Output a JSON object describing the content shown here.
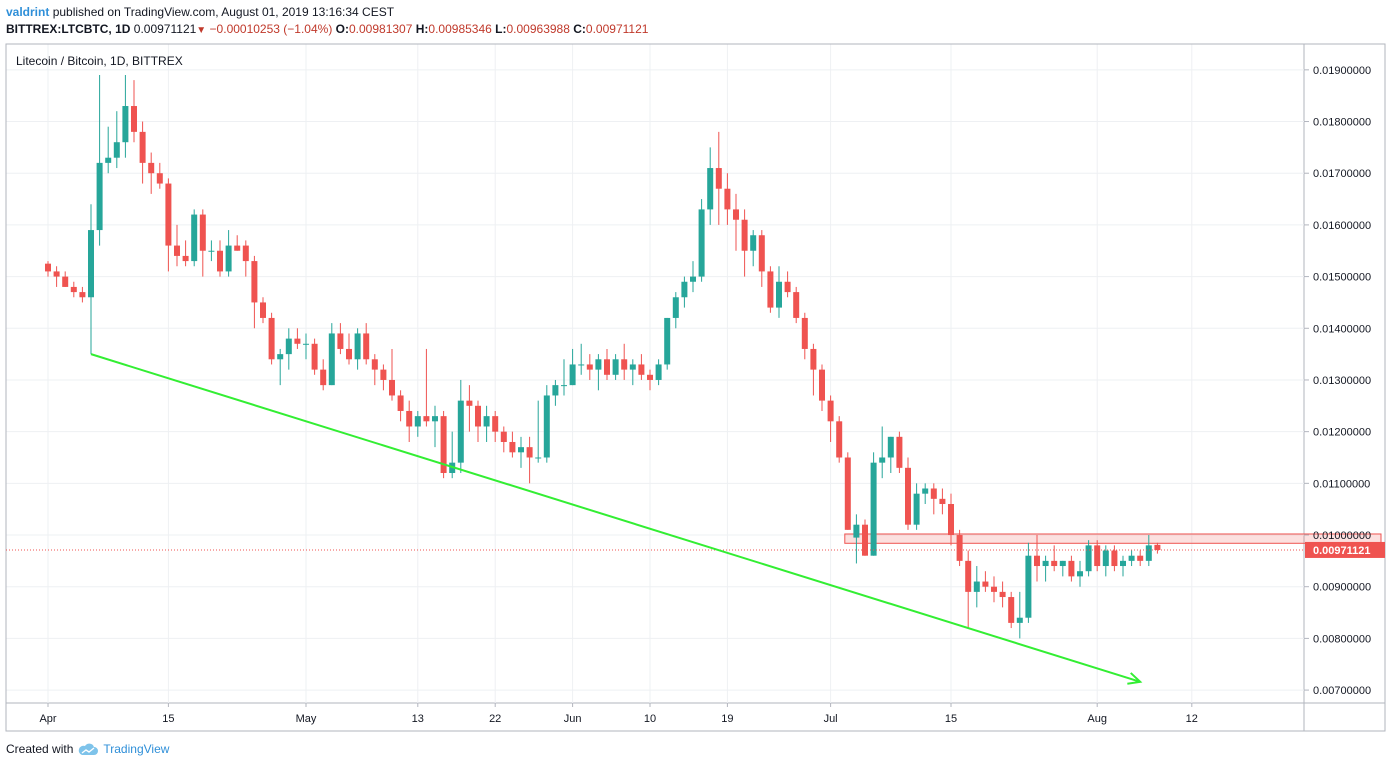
{
  "header": {
    "user": "valdrint",
    "published_text": "published on TradingView.com, August 01, 2019 13:16:34 CEST",
    "symbol": "BITTREX:LTCBTC, 1D",
    "last": "0.00971121",
    "change": "−0.00010253 (−1.04%)",
    "open_label": "O:",
    "open": "0.00981307",
    "high_label": "H:",
    "high": "0.00985346",
    "low_label": "L:",
    "low": "0.00963988",
    "close_label": "C:",
    "close": "0.00971121"
  },
  "footer": {
    "created_with": "Created with",
    "brand": "TradingView",
    "logo_icon": "tradingview-cloud-icon"
  },
  "chart_data": {
    "type": "candlestick",
    "title": "Litecoin / Bitcoin, 1D, BITTREX",
    "ylim": [
      0.00675,
      0.0195
    ],
    "y_ticks": [
      "0.00700000",
      "0.00800000",
      "0.00900000",
      "0.01000000",
      "0.01100000",
      "0.01200000",
      "0.01300000",
      "0.01400000",
      "0.01500000",
      "0.01600000",
      "0.01700000",
      "0.01800000",
      "0.01900000"
    ],
    "x_ticks": [
      "Apr",
      "15",
      "May",
      "13",
      "22",
      "Jun",
      "10",
      "19",
      "Jul",
      "15",
      "Aug",
      "12"
    ],
    "x_tick_index": [
      0,
      14,
      30,
      43,
      52,
      61,
      70,
      79,
      91,
      105,
      122,
      133
    ],
    "grid": true,
    "last_price": 0.00971121,
    "last_price_label": "0.00971121",
    "colors": {
      "up": "#26a69a",
      "down": "#ef5350",
      "trendline": "#33ee33",
      "price_line": "#ef5350"
    },
    "candles": [
      {
        "o": 0.01525,
        "h": 0.0153,
        "l": 0.015,
        "c": 0.0151
      },
      {
        "o": 0.0151,
        "h": 0.0152,
        "l": 0.0148,
        "c": 0.015
      },
      {
        "o": 0.015,
        "h": 0.0151,
        "l": 0.0148,
        "c": 0.0148
      },
      {
        "o": 0.0148,
        "h": 0.0149,
        "l": 0.0146,
        "c": 0.0147
      },
      {
        "o": 0.0147,
        "h": 0.0148,
        "l": 0.0145,
        "c": 0.0146
      },
      {
        "o": 0.0146,
        "h": 0.0164,
        "l": 0.0135,
        "c": 0.0159
      },
      {
        "o": 0.0159,
        "h": 0.0189,
        "l": 0.0156,
        "c": 0.0172
      },
      {
        "o": 0.0172,
        "h": 0.0179,
        "l": 0.017,
        "c": 0.0173
      },
      {
        "o": 0.0173,
        "h": 0.0182,
        "l": 0.0171,
        "c": 0.0176
      },
      {
        "o": 0.0176,
        "h": 0.0189,
        "l": 0.0173,
        "c": 0.0183
      },
      {
        "o": 0.0183,
        "h": 0.0188,
        "l": 0.0176,
        "c": 0.0178
      },
      {
        "o": 0.0178,
        "h": 0.018,
        "l": 0.0168,
        "c": 0.0172
      },
      {
        "o": 0.0172,
        "h": 0.0174,
        "l": 0.0166,
        "c": 0.017
      },
      {
        "o": 0.017,
        "h": 0.0172,
        "l": 0.0167,
        "c": 0.0168
      },
      {
        "o": 0.0168,
        "h": 0.0169,
        "l": 0.0151,
        "c": 0.0156
      },
      {
        "o": 0.0156,
        "h": 0.016,
        "l": 0.0152,
        "c": 0.0154
      },
      {
        "o": 0.0154,
        "h": 0.0157,
        "l": 0.0152,
        "c": 0.0153
      },
      {
        "o": 0.0153,
        "h": 0.0163,
        "l": 0.0152,
        "c": 0.0162
      },
      {
        "o": 0.0162,
        "h": 0.0163,
        "l": 0.015,
        "c": 0.0155
      },
      {
        "o": 0.0155,
        "h": 0.0157,
        "l": 0.0153,
        "c": 0.0155
      },
      {
        "o": 0.0155,
        "h": 0.0157,
        "l": 0.015,
        "c": 0.0151
      },
      {
        "o": 0.0151,
        "h": 0.0159,
        "l": 0.015,
        "c": 0.0156
      },
      {
        "o": 0.0156,
        "h": 0.0158,
        "l": 0.0155,
        "c": 0.0155
      },
      {
        "o": 0.0156,
        "h": 0.0157,
        "l": 0.015,
        "c": 0.0153
      },
      {
        "o": 0.0153,
        "h": 0.0154,
        "l": 0.014,
        "c": 0.0145
      },
      {
        "o": 0.0145,
        "h": 0.0146,
        "l": 0.0141,
        "c": 0.0142
      },
      {
        "o": 0.0142,
        "h": 0.0143,
        "l": 0.0133,
        "c": 0.0134
      },
      {
        "o": 0.0134,
        "h": 0.0136,
        "l": 0.0129,
        "c": 0.0135
      },
      {
        "o": 0.0135,
        "h": 0.014,
        "l": 0.0132,
        "c": 0.0138
      },
      {
        "o": 0.0138,
        "h": 0.014,
        "l": 0.0136,
        "c": 0.0137
      },
      {
        "o": 0.0137,
        "h": 0.0139,
        "l": 0.0134,
        "c": 0.0137
      },
      {
        "o": 0.0137,
        "h": 0.0138,
        "l": 0.0131,
        "c": 0.0132
      },
      {
        "o": 0.0132,
        "h": 0.0134,
        "l": 0.0128,
        "c": 0.0129
      },
      {
        "o": 0.0129,
        "h": 0.0141,
        "l": 0.0129,
        "c": 0.0139
      },
      {
        "o": 0.0139,
        "h": 0.0141,
        "l": 0.0135,
        "c": 0.0136
      },
      {
        "o": 0.0136,
        "h": 0.0139,
        "l": 0.0133,
        "c": 0.0134
      },
      {
        "o": 0.0134,
        "h": 0.014,
        "l": 0.0132,
        "c": 0.0139
      },
      {
        "o": 0.0139,
        "h": 0.0141,
        "l": 0.0133,
        "c": 0.0134
      },
      {
        "o": 0.0134,
        "h": 0.0135,
        "l": 0.0129,
        "c": 0.0132
      },
      {
        "o": 0.0132,
        "h": 0.0133,
        "l": 0.0128,
        "c": 0.013
      },
      {
        "o": 0.013,
        "h": 0.0136,
        "l": 0.0126,
        "c": 0.0127
      },
      {
        "o": 0.0127,
        "h": 0.0128,
        "l": 0.0122,
        "c": 0.0124
      },
      {
        "o": 0.0124,
        "h": 0.0126,
        "l": 0.0118,
        "c": 0.0121
      },
      {
        "o": 0.0121,
        "h": 0.0124,
        "l": 0.0119,
        "c": 0.0123
      },
      {
        "o": 0.0123,
        "h": 0.0136,
        "l": 0.0121,
        "c": 0.0122
      },
      {
        "o": 0.0122,
        "h": 0.0125,
        "l": 0.0117,
        "c": 0.0123
      },
      {
        "o": 0.0123,
        "h": 0.0124,
        "l": 0.0111,
        "c": 0.0112
      },
      {
        "o": 0.0112,
        "h": 0.012,
        "l": 0.0111,
        "c": 0.0114
      },
      {
        "o": 0.0114,
        "h": 0.013,
        "l": 0.0112,
        "c": 0.0126
      },
      {
        "o": 0.0126,
        "h": 0.0129,
        "l": 0.012,
        "c": 0.0125
      },
      {
        "o": 0.0125,
        "h": 0.0126,
        "l": 0.0118,
        "c": 0.0121
      },
      {
        "o": 0.0121,
        "h": 0.0125,
        "l": 0.0118,
        "c": 0.0123
      },
      {
        "o": 0.0123,
        "h": 0.0124,
        "l": 0.0118,
        "c": 0.012
      },
      {
        "o": 0.012,
        "h": 0.0121,
        "l": 0.0116,
        "c": 0.0118
      },
      {
        "o": 0.0118,
        "h": 0.012,
        "l": 0.0115,
        "c": 0.0116
      },
      {
        "o": 0.0116,
        "h": 0.0119,
        "l": 0.0113,
        "c": 0.0117
      },
      {
        "o": 0.0117,
        "h": 0.0119,
        "l": 0.011,
        "c": 0.0115
      },
      {
        "o": 0.0115,
        "h": 0.0126,
        "l": 0.0114,
        "c": 0.0115
      },
      {
        "o": 0.0115,
        "h": 0.0129,
        "l": 0.0114,
        "c": 0.0127
      },
      {
        "o": 0.0127,
        "h": 0.013,
        "l": 0.0125,
        "c": 0.0129
      },
      {
        "o": 0.0129,
        "h": 0.0134,
        "l": 0.0127,
        "c": 0.0129
      },
      {
        "o": 0.0129,
        "h": 0.0136,
        "l": 0.0129,
        "c": 0.0133
      },
      {
        "o": 0.0133,
        "h": 0.0137,
        "l": 0.0131,
        "c": 0.0133
      },
      {
        "o": 0.0133,
        "h": 0.0135,
        "l": 0.013,
        "c": 0.0132
      },
      {
        "o": 0.0132,
        "h": 0.0135,
        "l": 0.0128,
        "c": 0.0134
      },
      {
        "o": 0.0134,
        "h": 0.0136,
        "l": 0.013,
        "c": 0.0131
      },
      {
        "o": 0.0131,
        "h": 0.0135,
        "l": 0.013,
        "c": 0.0134
      },
      {
        "o": 0.0134,
        "h": 0.0137,
        "l": 0.013,
        "c": 0.0132
      },
      {
        "o": 0.0132,
        "h": 0.0134,
        "l": 0.0129,
        "c": 0.0133
      },
      {
        "o": 0.0133,
        "h": 0.0135,
        "l": 0.013,
        "c": 0.0131
      },
      {
        "o": 0.0131,
        "h": 0.0132,
        "l": 0.0128,
        "c": 0.013
      },
      {
        "o": 0.013,
        "h": 0.0134,
        "l": 0.0129,
        "c": 0.0133
      },
      {
        "o": 0.0133,
        "h": 0.0142,
        "l": 0.0132,
        "c": 0.0142
      },
      {
        "o": 0.0142,
        "h": 0.0147,
        "l": 0.014,
        "c": 0.0146
      },
      {
        "o": 0.0146,
        "h": 0.015,
        "l": 0.0144,
        "c": 0.0149
      },
      {
        "o": 0.0149,
        "h": 0.0153,
        "l": 0.0147,
        "c": 0.015
      },
      {
        "o": 0.015,
        "h": 0.0165,
        "l": 0.0149,
        "c": 0.0163
      },
      {
        "o": 0.0163,
        "h": 0.0175,
        "l": 0.016,
        "c": 0.0171
      },
      {
        "o": 0.0171,
        "h": 0.0178,
        "l": 0.016,
        "c": 0.0167
      },
      {
        "o": 0.0167,
        "h": 0.017,
        "l": 0.016,
        "c": 0.0163
      },
      {
        "o": 0.0163,
        "h": 0.0166,
        "l": 0.0155,
        "c": 0.0161
      },
      {
        "o": 0.0161,
        "h": 0.0163,
        "l": 0.015,
        "c": 0.0155
      },
      {
        "o": 0.0155,
        "h": 0.0159,
        "l": 0.0152,
        "c": 0.0158
      },
      {
        "o": 0.0158,
        "h": 0.0159,
        "l": 0.0148,
        "c": 0.0151
      },
      {
        "o": 0.0151,
        "h": 0.0152,
        "l": 0.0143,
        "c": 0.0144
      },
      {
        "o": 0.0144,
        "h": 0.0152,
        "l": 0.0142,
        "c": 0.0149
      },
      {
        "o": 0.0149,
        "h": 0.0151,
        "l": 0.0146,
        "c": 0.0147
      },
      {
        "o": 0.0147,
        "h": 0.0148,
        "l": 0.0141,
        "c": 0.0142
      },
      {
        "o": 0.0142,
        "h": 0.0143,
        "l": 0.0134,
        "c": 0.0136
      },
      {
        "o": 0.0136,
        "h": 0.0137,
        "l": 0.0127,
        "c": 0.0132
      },
      {
        "o": 0.0132,
        "h": 0.0133,
        "l": 0.0124,
        "c": 0.0126
      },
      {
        "o": 0.0126,
        "h": 0.0127,
        "l": 0.0118,
        "c": 0.0122
      },
      {
        "o": 0.0122,
        "h": 0.0123,
        "l": 0.0114,
        "c": 0.0115
      },
      {
        "o": 0.0115,
        "h": 0.0116,
        "l": 0.0101,
        "c": 0.0101
      },
      {
        "o": 0.00995,
        "h": 0.0104,
        "l": 0.00945,
        "c": 0.0102
      },
      {
        "o": 0.0102,
        "h": 0.0103,
        "l": 0.0096,
        "c": 0.0096
      },
      {
        "o": 0.0096,
        "h": 0.0116,
        "l": 0.0096,
        "c": 0.0114
      },
      {
        "o": 0.0114,
        "h": 0.0121,
        "l": 0.0111,
        "c": 0.0115
      },
      {
        "o": 0.0115,
        "h": 0.0119,
        "l": 0.0112,
        "c": 0.0119
      },
      {
        "o": 0.0119,
        "h": 0.012,
        "l": 0.0112,
        "c": 0.0113
      },
      {
        "o": 0.0113,
        "h": 0.0115,
        "l": 0.0101,
        "c": 0.0102
      },
      {
        "o": 0.0102,
        "h": 0.011,
        "l": 0.0101,
        "c": 0.0108
      },
      {
        "o": 0.0108,
        "h": 0.011,
        "l": 0.0106,
        "c": 0.0109
      },
      {
        "o": 0.0109,
        "h": 0.011,
        "l": 0.0104,
        "c": 0.0107
      },
      {
        "o": 0.0107,
        "h": 0.0109,
        "l": 0.0104,
        "c": 0.0106
      },
      {
        "o": 0.0106,
        "h": 0.0108,
        "l": 0.0098,
        "c": 0.01
      },
      {
        "o": 0.01,
        "h": 0.0101,
        "l": 0.0094,
        "c": 0.0095
      },
      {
        "o": 0.0095,
        "h": 0.0097,
        "l": 0.0082,
        "c": 0.0089
      },
      {
        "o": 0.0089,
        "h": 0.0094,
        "l": 0.0086,
        "c": 0.0091
      },
      {
        "o": 0.0091,
        "h": 0.0093,
        "l": 0.0089,
        "c": 0.009
      },
      {
        "o": 0.009,
        "h": 0.0092,
        "l": 0.0087,
        "c": 0.0089
      },
      {
        "o": 0.0089,
        "h": 0.0091,
        "l": 0.0086,
        "c": 0.0088
      },
      {
        "o": 0.0088,
        "h": 0.0089,
        "l": 0.0082,
        "c": 0.0083
      },
      {
        "o": 0.0083,
        "h": 0.0089,
        "l": 0.008,
        "c": 0.0084
      },
      {
        "o": 0.0084,
        "h": 0.00985,
        "l": 0.0083,
        "c": 0.0096
      },
      {
        "o": 0.0096,
        "h": 0.01,
        "l": 0.0091,
        "c": 0.0094
      },
      {
        "o": 0.0094,
        "h": 0.0096,
        "l": 0.0091,
        "c": 0.0095
      },
      {
        "o": 0.0095,
        "h": 0.0098,
        "l": 0.0093,
        "c": 0.0094
      },
      {
        "o": 0.0094,
        "h": 0.0095,
        "l": 0.0092,
        "c": 0.0095
      },
      {
        "o": 0.0095,
        "h": 0.0096,
        "l": 0.0091,
        "c": 0.0092
      },
      {
        "o": 0.0092,
        "h": 0.0095,
        "l": 0.009,
        "c": 0.0093
      },
      {
        "o": 0.0093,
        "h": 0.0099,
        "l": 0.0092,
        "c": 0.0098
      },
      {
        "o": 0.0098,
        "h": 0.0099,
        "l": 0.0093,
        "c": 0.0094
      },
      {
        "o": 0.0094,
        "h": 0.0098,
        "l": 0.0092,
        "c": 0.0097
      },
      {
        "o": 0.0097,
        "h": 0.0098,
        "l": 0.0093,
        "c": 0.0094
      },
      {
        "o": 0.0094,
        "h": 0.0096,
        "l": 0.0092,
        "c": 0.0095
      },
      {
        "o": 0.0095,
        "h": 0.0097,
        "l": 0.0094,
        "c": 0.0096
      },
      {
        "o": 0.0096,
        "h": 0.0097,
        "l": 0.0094,
        "c": 0.0095
      },
      {
        "o": 0.0095,
        "h": 0.01,
        "l": 0.0094,
        "c": 0.0098
      },
      {
        "o": 0.00981,
        "h": 0.00985,
        "l": 0.00964,
        "c": 0.00971
      }
    ],
    "trendline": [
      {
        "index": 5,
        "price": 0.0135
      },
      {
        "index": 127,
        "price": 0.00716
      }
    ],
    "resistance_zone": {
      "from_index": 93,
      "to_index": 155,
      "low": 0.00984,
      "high": 0.01002
    }
  }
}
